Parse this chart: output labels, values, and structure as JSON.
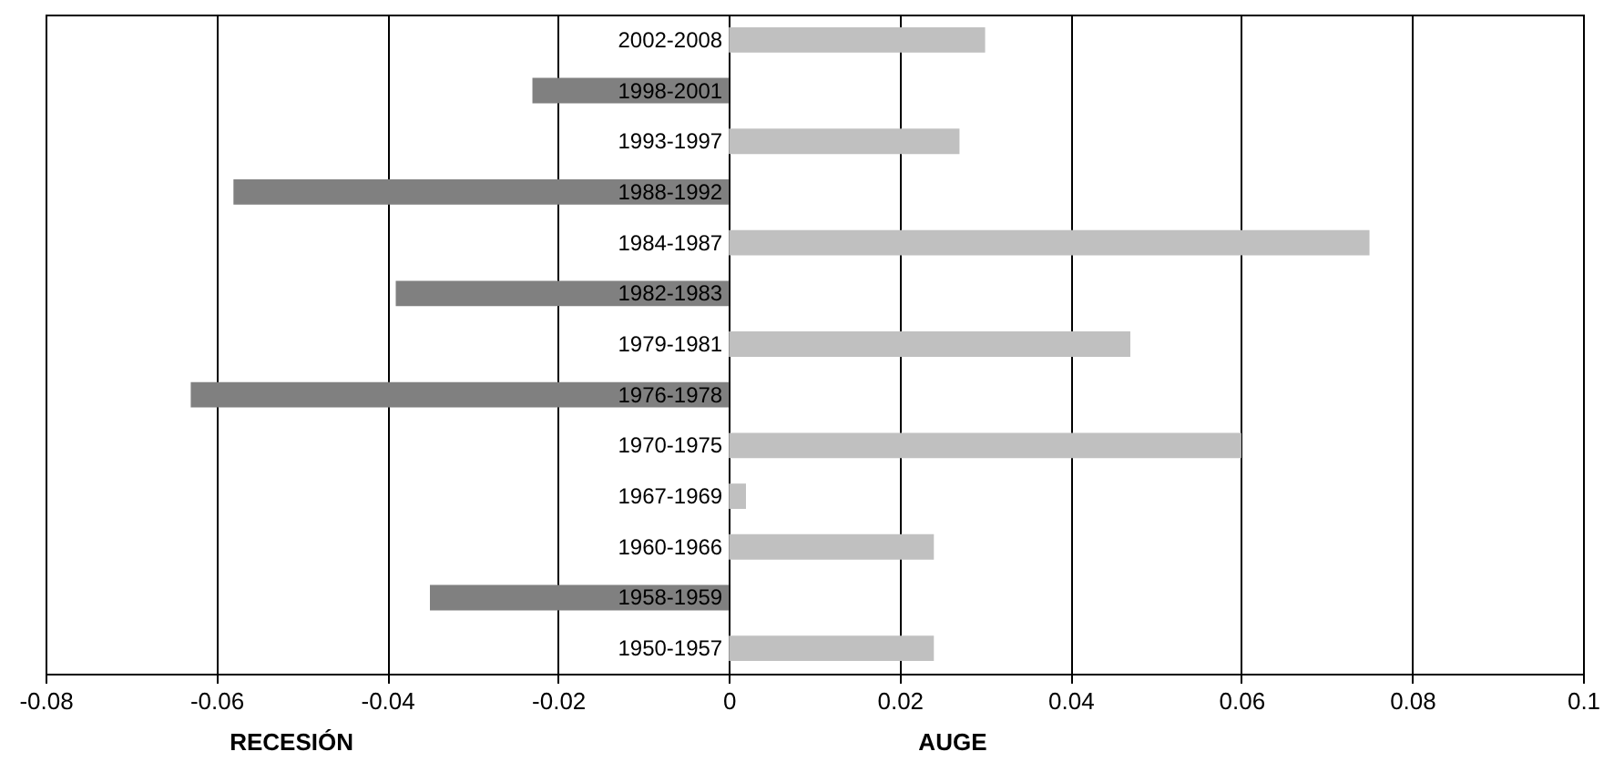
{
  "chart_data": {
    "type": "bar",
    "orientation": "horizontal",
    "categories": [
      "2002-2008",
      "1998-2001",
      "1993-1997",
      "1988-1992",
      "1984-1987",
      "1982-1983",
      "1979-1981",
      "1976-1978",
      "1970-1975",
      "1967-1969",
      "1960-1966",
      "1958-1959",
      "1950-1957"
    ],
    "values": [
      0.03,
      -0.023,
      0.027,
      -0.058,
      0.075,
      -0.039,
      0.047,
      -0.063,
      0.06,
      0.002,
      0.024,
      -0.035,
      0.024
    ],
    "colors": [
      "#c0c0c0",
      "#808080",
      "#c0c0c0",
      "#808080",
      "#c0c0c0",
      "#808080",
      "#c0c0c0",
      "#808080",
      "#c0c0c0",
      "#c0c0c0",
      "#c0c0c0",
      "#808080",
      "#c0c0c0"
    ],
    "xlim": [
      -0.08,
      0.1
    ],
    "xticks": [
      -0.08,
      -0.06,
      -0.04,
      -0.02,
      0,
      0.02,
      0.04,
      0.06,
      0.08,
      0.1
    ],
    "grid": "x",
    "annotations": [
      "RECESIÓN",
      "AUGE"
    ]
  }
}
